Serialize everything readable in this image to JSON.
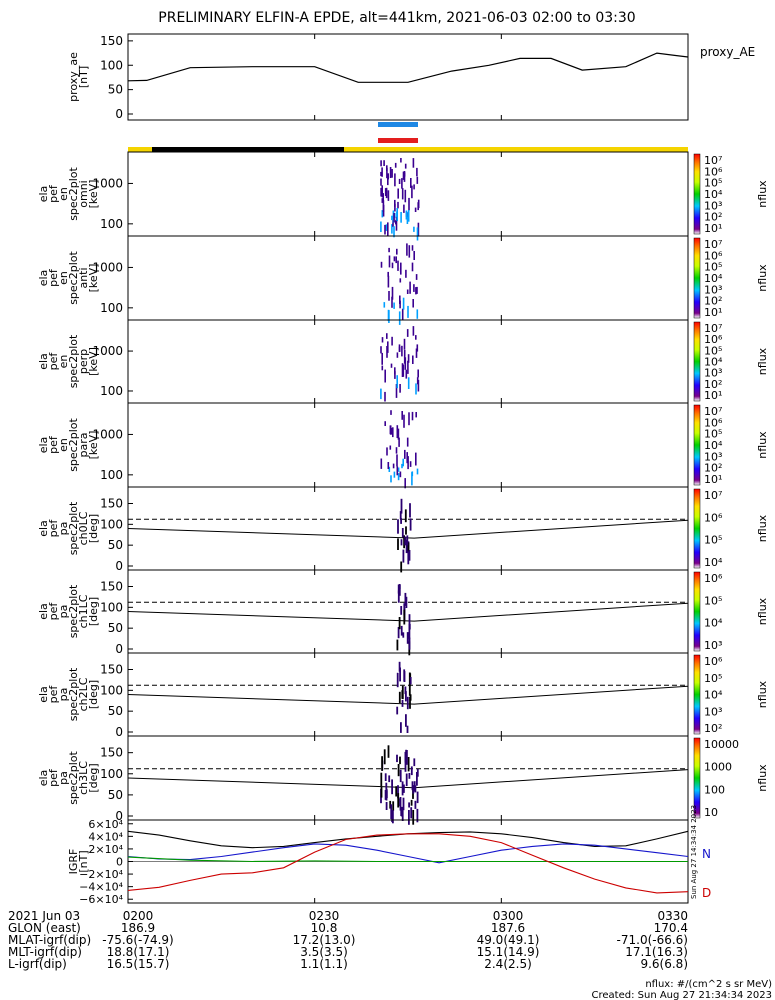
{
  "title": "PRELIMINARY ELFIN-A EPDE, alt=441km, 2021-06-03 02:00 to 03:30",
  "colors": {
    "bar_blue": "#1e88e5",
    "bar_red": "#e31e1e",
    "bar_yellow": "#f5d400",
    "bar_black": "#000000"
  },
  "panels": [
    {
      "id": "proxy_ae",
      "ylabel": [
        "proxy_ae",
        "[nT]"
      ],
      "right_label": "proxy_AE",
      "ticks": [
        "150",
        "100",
        "50",
        "0"
      ]
    },
    {
      "id": "omni",
      "ylabel": [
        "ela",
        "pef",
        "en",
        "spec2plot",
        "omni",
        "[keV]"
      ],
      "ticks": [
        "1000",
        "100"
      ],
      "cbar_label": "nflux",
      "cbar_ticks": [
        "10⁷",
        "10⁶",
        "10⁵",
        "10⁴",
        "10³",
        "10²",
        "10¹"
      ]
    },
    {
      "id": "anti",
      "ylabel": [
        "ela",
        "pef",
        "en",
        "spec2plot",
        "anti",
        "[keV]"
      ],
      "ticks": [
        "1000",
        "100"
      ],
      "cbar_label": "nflux",
      "cbar_ticks": [
        "10⁷",
        "10⁶",
        "10⁵",
        "10⁴",
        "10³",
        "10²",
        "10¹"
      ]
    },
    {
      "id": "perp",
      "ylabel": [
        "ela",
        "pef",
        "en",
        "spec2plot",
        "perp",
        "[keV]"
      ],
      "ticks": [
        "1000",
        "100"
      ],
      "cbar_label": "nflux",
      "cbar_ticks": [
        "10⁷",
        "10⁶",
        "10⁵",
        "10⁴",
        "10³",
        "10²",
        "10¹"
      ]
    },
    {
      "id": "para",
      "ylabel": [
        "ela",
        "pef",
        "en",
        "spec2plot",
        "para",
        "[keV]"
      ],
      "ticks": [
        "1000",
        "100"
      ],
      "cbar_label": "nflux",
      "cbar_ticks": [
        "10⁷",
        "10⁶",
        "10⁵",
        "10⁴",
        "10³",
        "10²",
        "10¹"
      ]
    },
    {
      "id": "ch0",
      "ylabel": [
        "ela",
        "pef",
        "pa",
        "spec2plot",
        "ch0LC",
        "[deg]"
      ],
      "ticks": [
        "150",
        "100",
        "50",
        "0"
      ],
      "cbar_label": "nflux",
      "cbar_ticks": [
        "10⁷",
        "10⁶",
        "10⁵",
        "10⁴"
      ]
    },
    {
      "id": "ch1",
      "ylabel": [
        "ela",
        "pef",
        "pa",
        "spec2plot",
        "ch1LC",
        "[deg]"
      ],
      "ticks": [
        "150",
        "100",
        "50",
        "0"
      ],
      "cbar_label": "nflux",
      "cbar_ticks": [
        "10⁶",
        "10⁵",
        "10⁴",
        "10³"
      ]
    },
    {
      "id": "ch2",
      "ylabel": [
        "ela",
        "pef",
        "pa",
        "spec2plot",
        "ch2LC",
        "[deg]"
      ],
      "ticks": [
        "150",
        "100",
        "50",
        "0"
      ],
      "cbar_label": "nflux",
      "cbar_ticks": [
        "10⁶",
        "10⁵",
        "10⁴",
        "10³",
        "10²"
      ]
    },
    {
      "id": "ch3",
      "ylabel": [
        "ela",
        "pef",
        "pa",
        "spec2plot",
        "ch3LC",
        "[deg]"
      ],
      "ticks": [
        "150",
        "100",
        "50",
        "0"
      ],
      "cbar_label": "nflux",
      "cbar_ticks": [
        "10000",
        "1000",
        "100",
        "10"
      ]
    },
    {
      "id": "igrf",
      "ylabel": [
        "IGRF",
        "[nT]"
      ],
      "ticks": [
        "6×10⁴",
        "4×10⁴",
        "2×10⁴",
        "0",
        "−2×10⁴",
        "−4×10⁴",
        "−6×10⁴"
      ],
      "legend": {
        "n": "N",
        "d": "D"
      },
      "sidenote": "Sun Aug 27 14:34:34 2023"
    }
  ],
  "chart_data": {
    "type": "line",
    "title": "PRELIMINARY ELFIN-A EPDE, alt=441km, 2021-06-03 02:00 to 03:30",
    "x_tick_labels": [
      "0200",
      "0230",
      "0300",
      "0330"
    ],
    "x_minutes": [
      0,
      30,
      60,
      90
    ],
    "proxy_ae": {
      "name": "proxy_AE",
      "ylabel": "proxy_ae [nT]",
      "ylim": [
        0,
        160
      ],
      "x": [
        0,
        3,
        10,
        20,
        30,
        37,
        45,
        52,
        58,
        63,
        68,
        73,
        80,
        85,
        88,
        90
      ],
      "y": [
        68,
        69,
        95,
        97,
        97,
        65,
        65,
        88,
        100,
        114,
        114,
        90,
        97,
        125,
        120,
        117
      ]
    },
    "energy_ylim_log": [
      50,
      6000
    ],
    "pa_ylim": [
      0,
      180
    ],
    "loss_cone": {
      "x": [
        0,
        46,
        90
      ],
      "y": [
        90,
        67,
        110
      ]
    },
    "anti_loss_cone": {
      "x": [
        0,
        46,
        90
      ],
      "y": [
        112,
        112,
        112
      ]
    },
    "igrf": {
      "ylim": [
        -66000,
        66000
      ],
      "series": [
        {
          "name": "",
          "color": "#000000",
          "x": [
            0,
            5,
            10,
            15,
            20,
            25,
            30,
            35,
            40,
            45,
            50,
            55,
            60,
            65,
            70,
            75,
            80,
            85,
            90
          ],
          "y": [
            48000,
            42000,
            33000,
            25000,
            22000,
            24000,
            30000,
            36000,
            40000,
            44000,
            46000,
            47000,
            44000,
            38000,
            30000,
            24000,
            25000,
            36000,
            48000
          ]
        },
        {
          "name": "N",
          "color": "#1515cc",
          "x": [
            0,
            5,
            10,
            15,
            20,
            25,
            30,
            35,
            40,
            45,
            50,
            55,
            60,
            65,
            70,
            75,
            80,
            85,
            90
          ],
          "y": [
            8000,
            4000,
            3000,
            8000,
            15000,
            22000,
            28000,
            26000,
            18000,
            8000,
            -2000,
            8000,
            18000,
            24000,
            28000,
            26000,
            20000,
            14000,
            8000
          ]
        },
        {
          "name": "",
          "color": "#009900",
          "x": [
            0,
            10,
            20,
            30,
            40,
            50,
            60,
            70,
            80,
            90
          ],
          "y": [
            7000,
            2000,
            0,
            1000,
            0,
            0,
            0,
            0,
            0,
            0
          ]
        },
        {
          "name": "D",
          "color": "#cc0000",
          "x": [
            0,
            5,
            10,
            15,
            20,
            25,
            30,
            35,
            40,
            45,
            50,
            55,
            60,
            65,
            70,
            75,
            80,
            85,
            90
          ],
          "y": [
            -46000,
            -41000,
            -30000,
            -20000,
            -18000,
            -10000,
            15000,
            35000,
            42000,
            44000,
            44000,
            40000,
            30000,
            10000,
            -10000,
            -28000,
            -42000,
            -50000,
            -48000
          ]
        }
      ]
    }
  },
  "orbit_table": {
    "rows": [
      {
        "label": "2021 Jun 03",
        "values": [
          "0200",
          "",
          "",
          ""
        ]
      },
      {
        "label": "GLON (east)",
        "values": [
          "186.9",
          "10.8",
          "187.6",
          "170.4"
        ]
      },
      {
        "label": "MLAT-igrf(dip)",
        "values": [
          "-75.6(-74.9)",
          "17.2(13.0)",
          "49.0(49.1)",
          "-71.0(-66.6)"
        ]
      },
      {
        "label": "MLT-igrf(dip)",
        "values": [
          "18.8(17.1)",
          "3.5(3.5)",
          "15.1(14.9)",
          "17.1(16.3)"
        ]
      },
      {
        "label": "L-igrf(dip)",
        "values": [
          "16.5(15.7)",
          "1.1(1.1)",
          "2.4(2.5)",
          "9.6(6.8)"
        ]
      }
    ]
  },
  "footer": {
    "units": "nflux: #/(cm^2 s sr MeV)",
    "created": "Created: Sun Aug 27 21:34:34 2023"
  }
}
